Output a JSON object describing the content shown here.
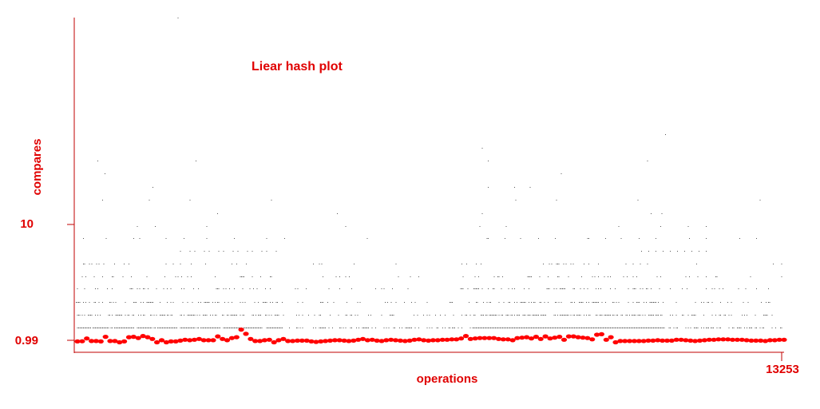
{
  "chart_data": {
    "type": "scatter",
    "title": "Liear hash plot",
    "xlabel": "operations",
    "ylabel": "compares",
    "xlim": [
      0,
      13253
    ],
    "x_tick_labels": [
      "13253"
    ],
    "y_tick_labels": [
      "10",
      "0.99"
    ],
    "grid": false,
    "colors": {
      "axis": "#c00000",
      "text": "#e00000",
      "average_points": "#ff0000",
      "cost_points": "#000000"
    },
    "series": [
      {
        "name": "",
        "kind": "average cost (red dots)",
        "y_scale": "relative to tick 0.99 = baseline, tick 10 = upper marker",
        "values": [
          0.2,
          0.25,
          0.9,
          0.3,
          0.3,
          0.2,
          1.3,
          0.3,
          0.3,
          0.0,
          0.2,
          1.2,
          1.3,
          1.0,
          1.5,
          1.2,
          0.8,
          0.0,
          0.5,
          0.0,
          0.2,
          0.2,
          0.4,
          0.6,
          0.5,
          0.6,
          0.8,
          0.5,
          0.5,
          0.5,
          1.4,
          0.8,
          0.5,
          1.0,
          1.2,
          3.0,
          2.0,
          0.8,
          0.3,
          0.3,
          0.5,
          0.6,
          0.0,
          0.5,
          0.8,
          0.3,
          0.3,
          0.4,
          0.4,
          0.4,
          0.2,
          0.1,
          0.2,
          0.3,
          0.4,
          0.5,
          0.5,
          0.4,
          0.3,
          0.4,
          0.6,
          0.8,
          0.5,
          0.6,
          0.4,
          0.3,
          0.5,
          0.6,
          0.5,
          0.4,
          0.3,
          0.4,
          0.6,
          0.7,
          0.5,
          0.4,
          0.5,
          0.5,
          0.6,
          0.6,
          0.7,
          0.7,
          0.9,
          1.5,
          0.8,
          0.9,
          1.0,
          1.0,
          1.0,
          1.0,
          0.8,
          0.7,
          0.7,
          0.5,
          1.0,
          1.1,
          1.2,
          0.9,
          1.3,
          0.8,
          1.4,
          0.9,
          1.1,
          1.3,
          0.6,
          1.4,
          1.4,
          1.2,
          1.1,
          1.0,
          0.7,
          1.8,
          1.9,
          0.6,
          1.2,
          0.0,
          0.3,
          0.3,
          0.3,
          0.3,
          0.3,
          0.3,
          0.4,
          0.4,
          0.5,
          0.4,
          0.4,
          0.4,
          0.6,
          0.6,
          0.5,
          0.4,
          0.3,
          0.4,
          0.5,
          0.6,
          0.6,
          0.7,
          0.7,
          0.7,
          0.6,
          0.6,
          0.6,
          0.5,
          0.4,
          0.4,
          0.4,
          0.3,
          0.5,
          0.5,
          0.6,
          0.6
        ]
      }
    ]
  }
}
